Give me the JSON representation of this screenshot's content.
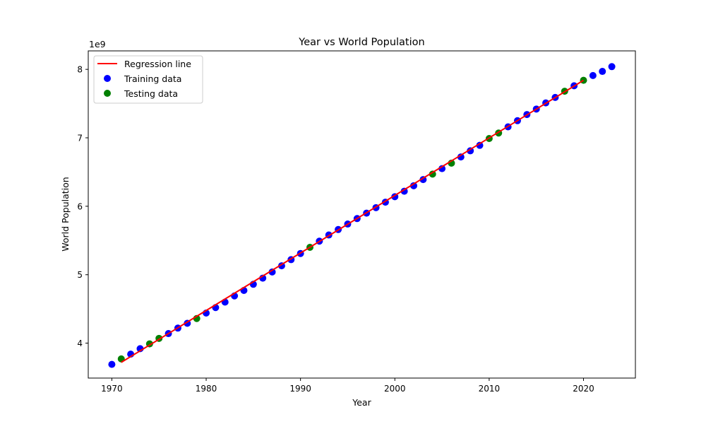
{
  "chart_data": {
    "type": "scatter",
    "title": "Year vs World Population",
    "xlabel": "Year",
    "ylabel": "World Population",
    "y_offset_label": "1e9",
    "xlim": [
      1967.5,
      2025.5
    ],
    "ylim": [
      3.49,
      8.27
    ],
    "xticks": [
      1970,
      1980,
      1990,
      2000,
      2010,
      2020
    ],
    "yticks": [
      4,
      5,
      6,
      7,
      8
    ],
    "y_scale_factor": 1000000000,
    "grid": false,
    "legend": {
      "position": "top-left",
      "entries": [
        "Regression line",
        "Training data",
        "Testing data"
      ]
    },
    "colors": {
      "regression": "#ff0000",
      "training": "#0000ff",
      "testing": "#008000"
    },
    "series": [
      {
        "name": "Training data",
        "kind": "scatter",
        "x": [
          1970,
          1972,
          1973,
          1976,
          1977,
          1978,
          1980,
          1981,
          1982,
          1983,
          1984,
          1985,
          1986,
          1987,
          1988,
          1989,
          1990,
          1992,
          1993,
          1994,
          1995,
          1996,
          1997,
          1998,
          1999,
          2000,
          2001,
          2002,
          2003,
          2005,
          2007,
          2008,
          2009,
          2012,
          2013,
          2014,
          2015,
          2016,
          2017,
          2019,
          2021,
          2022,
          2023
        ],
        "y": [
          3.69,
          3.84,
          3.92,
          4.14,
          4.22,
          4.29,
          4.44,
          4.52,
          4.6,
          4.69,
          4.77,
          4.86,
          4.95,
          5.04,
          5.13,
          5.22,
          5.31,
          5.49,
          5.58,
          5.66,
          5.74,
          5.82,
          5.9,
          5.98,
          6.06,
          6.14,
          6.22,
          6.3,
          6.39,
          6.55,
          6.72,
          6.81,
          6.89,
          7.16,
          7.25,
          7.34,
          7.42,
          7.51,
          7.59,
          7.76,
          7.91,
          7.97,
          8.04
        ]
      },
      {
        "name": "Testing data",
        "kind": "scatter",
        "x": [
          1971,
          1974,
          1975,
          1979,
          1991,
          2004,
          2006,
          2010,
          2011,
          2018,
          2020
        ],
        "y": [
          3.77,
          3.99,
          4.07,
          4.36,
          5.4,
          6.47,
          6.63,
          6.99,
          7.07,
          7.68,
          7.84
        ]
      },
      {
        "name": "Regression line",
        "kind": "line",
        "x": [
          1971,
          2020
        ],
        "y": [
          3.72,
          7.84
        ]
      }
    ]
  }
}
